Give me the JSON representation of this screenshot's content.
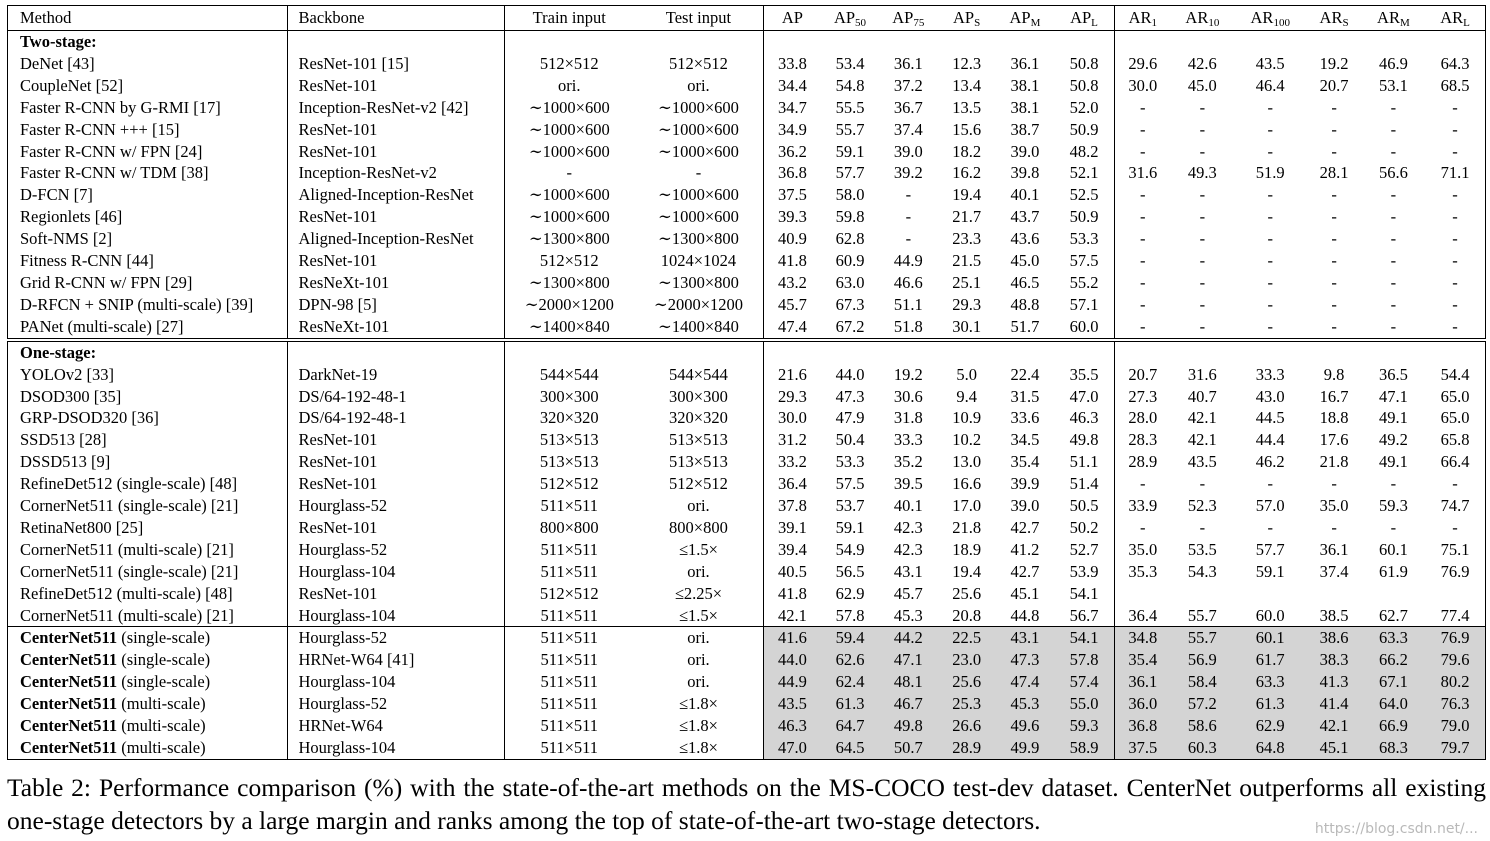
{
  "headers": {
    "method": "Method",
    "backbone": "Backbone",
    "train": "Train input",
    "test": "Test input",
    "metrics": [
      {
        "base": "AP",
        "sub": ""
      },
      {
        "base": "AP",
        "sub": "50"
      },
      {
        "base": "AP",
        "sub": "75"
      },
      {
        "base": "AP",
        "sub": "S"
      },
      {
        "base": "AP",
        "sub": "M"
      },
      {
        "base": "AP",
        "sub": "L"
      },
      {
        "base": "AR",
        "sub": "1"
      },
      {
        "base": "AR",
        "sub": "10"
      },
      {
        "base": "AR",
        "sub": "100"
      },
      {
        "base": "AR",
        "sub": "S"
      },
      {
        "base": "AR",
        "sub": "M"
      },
      {
        "base": "AR",
        "sub": "L"
      }
    ]
  },
  "sections": [
    {
      "label": "Two-stage:",
      "rows": [
        {
          "method": "DeNet [43]",
          "backbone": "ResNet-101 [15]",
          "train": "512×512",
          "test": "512×512",
          "values": [
            "33.8",
            "53.4",
            "36.1",
            "12.3",
            "36.1",
            "50.8",
            "29.6",
            "42.6",
            "43.5",
            "19.2",
            "46.9",
            "64.3"
          ]
        },
        {
          "method": "CoupleNet [52]",
          "backbone": "ResNet-101",
          "train": "ori.",
          "test": "ori.",
          "values": [
            "34.4",
            "54.8",
            "37.2",
            "13.4",
            "38.1",
            "50.8",
            "30.0",
            "45.0",
            "46.4",
            "20.7",
            "53.1",
            "68.5"
          ]
        },
        {
          "method": "Faster R-CNN by G-RMI [17]",
          "backbone": "Inception-ResNet-v2 [42]",
          "train": "∼1000×600",
          "test": "∼1000×600",
          "values": [
            "34.7",
            "55.5",
            "36.7",
            "13.5",
            "38.1",
            "52.0",
            "-",
            "-",
            "-",
            "-",
            "-",
            "-"
          ]
        },
        {
          "method": "Faster R-CNN +++ [15]",
          "backbone": "ResNet-101",
          "train": "∼1000×600",
          "test": "∼1000×600",
          "values": [
            "34.9",
            "55.7",
            "37.4",
            "15.6",
            "38.7",
            "50.9",
            "-",
            "-",
            "-",
            "-",
            "-",
            "-"
          ]
        },
        {
          "method": "Faster R-CNN w/ FPN [24]",
          "backbone": "ResNet-101",
          "train": "∼1000×600",
          "test": "∼1000×600",
          "values": [
            "36.2",
            "59.1",
            "39.0",
            "18.2",
            "39.0",
            "48.2",
            "-",
            "-",
            "-",
            "-",
            "-",
            "-"
          ]
        },
        {
          "method": "Faster R-CNN w/ TDM [38]",
          "backbone": "Inception-ResNet-v2",
          "train": "-",
          "test": "-",
          "values": [
            "36.8",
            "57.7",
            "39.2",
            "16.2",
            "39.8",
            "52.1",
            "31.6",
            "49.3",
            "51.9",
            "28.1",
            "56.6",
            "71.1"
          ],
          "bold": [
            6,
            7,
            8,
            9,
            10,
            11
          ]
        },
        {
          "method": "D-FCN [7]",
          "backbone": "Aligned-Inception-ResNet",
          "train": "∼1000×600",
          "test": "∼1000×600",
          "values": [
            "37.5",
            "58.0",
            "-",
            "19.4",
            "40.1",
            "52.5",
            "-",
            "-",
            "-",
            "-",
            "-",
            "-"
          ]
        },
        {
          "method": "Regionlets [46]",
          "backbone": "ResNet-101",
          "train": "∼1000×600",
          "test": "∼1000×600",
          "values": [
            "39.3",
            "59.8",
            "-",
            "21.7",
            "43.7",
            "50.9",
            "-",
            "-",
            "-",
            "-",
            "-",
            "-"
          ]
        },
        {
          "method": "Soft-NMS [2]",
          "backbone": "Aligned-Inception-ResNet",
          "train": "∼1300×800",
          "test": "∼1300×800",
          "values": [
            "40.9",
            "62.8",
            "-",
            "23.3",
            "43.6",
            "53.3",
            "-",
            "-",
            "-",
            "-",
            "-",
            "-"
          ]
        },
        {
          "method": "Fitness R-CNN [44]",
          "backbone": "ResNet-101",
          "train": "512×512",
          "test": "1024×1024",
          "values": [
            "41.8",
            "60.9",
            "44.9",
            "21.5",
            "45.0",
            "57.5",
            "-",
            "-",
            "-",
            "-",
            "-",
            "-"
          ]
        },
        {
          "method": "Grid R-CNN w/ FPN [29]",
          "backbone": "ResNeXt-101",
          "train": "∼1300×800",
          "test": "∼1300×800",
          "values": [
            "43.2",
            "63.0",
            "46.6",
            "25.1",
            "46.5",
            "55.2",
            "-",
            "-",
            "-",
            "-",
            "-",
            "-"
          ]
        },
        {
          "method": "D-RFCN + SNIP (multi-scale) [39]",
          "backbone": "DPN-98 [5]",
          "train": "∼2000×1200",
          "test": "∼2000×1200",
          "values": [
            "45.7",
            "67.3",
            "51.1",
            "29.3",
            "48.8",
            "57.1",
            "-",
            "-",
            "-",
            "-",
            "-",
            "-"
          ],
          "bold": [
            1
          ]
        },
        {
          "method": "PANet (multi-scale) [27]",
          "backbone": "ResNeXt-101",
          "train": "∼1400×840",
          "test": "∼1400×840",
          "values": [
            "47.4",
            "67.2",
            "51.8",
            "30.1",
            "51.7",
            "60.0",
            "-",
            "-",
            "-",
            "-",
            "-",
            "-"
          ],
          "bold": [
            0,
            2,
            3,
            4,
            5
          ]
        }
      ]
    },
    {
      "label": "One-stage:",
      "rows": [
        {
          "method": "YOLOv2 [33]",
          "backbone": "DarkNet-19",
          "train": "544×544",
          "test": "544×544",
          "values": [
            "21.6",
            "44.0",
            "19.2",
            "5.0",
            "22.4",
            "35.5",
            "20.7",
            "31.6",
            "33.3",
            "9.8",
            "36.5",
            "54.4"
          ]
        },
        {
          "method": "DSOD300 [35]",
          "backbone": "DS/64-192-48-1",
          "train": "300×300",
          "test": "300×300",
          "values": [
            "29.3",
            "47.3",
            "30.6",
            "9.4",
            "31.5",
            "47.0",
            "27.3",
            "40.7",
            "43.0",
            "16.7",
            "47.1",
            "65.0"
          ]
        },
        {
          "method": "GRP-DSOD320 [36]",
          "backbone": "DS/64-192-48-1",
          "train": "320×320",
          "test": "320×320",
          "values": [
            "30.0",
            "47.9",
            "31.8",
            "10.9",
            "33.6",
            "46.3",
            "28.0",
            "42.1",
            "44.5",
            "18.8",
            "49.1",
            "65.0"
          ]
        },
        {
          "method": "SSD513 [28]",
          "backbone": "ResNet-101",
          "train": "513×513",
          "test": "513×513",
          "values": [
            "31.2",
            "50.4",
            "33.3",
            "10.2",
            "34.5",
            "49.8",
            "28.3",
            "42.1",
            "44.4",
            "17.6",
            "49.2",
            "65.8"
          ]
        },
        {
          "method": "DSSD513 [9]",
          "backbone": "ResNet-101",
          "train": "513×513",
          "test": "513×513",
          "values": [
            "33.2",
            "53.3",
            "35.2",
            "13.0",
            "35.4",
            "51.1",
            "28.9",
            "43.5",
            "46.2",
            "21.8",
            "49.1",
            "66.4"
          ]
        },
        {
          "method": "RefineDet512 (single-scale) [48]",
          "backbone": "ResNet-101",
          "train": "512×512",
          "test": "512×512",
          "values": [
            "36.4",
            "57.5",
            "39.5",
            "16.6",
            "39.9",
            "51.4",
            "-",
            "-",
            "-",
            "-",
            "-",
            "-"
          ]
        },
        {
          "method": "CornerNet511 (single-scale) [21]",
          "backbone": "Hourglass-52",
          "train": "511×511",
          "test": "ori.",
          "values": [
            "37.8",
            "53.7",
            "40.1",
            "17.0",
            "39.0",
            "50.5",
            "33.9",
            "52.3",
            "57.0",
            "35.0",
            "59.3",
            "74.7"
          ]
        },
        {
          "method": "RetinaNet800 [25]",
          "backbone": "ResNet-101",
          "train": "800×800",
          "test": "800×800",
          "values": [
            "39.1",
            "59.1",
            "42.3",
            "21.8",
            "42.7",
            "50.2",
            "-",
            "-",
            "-",
            "-",
            "-",
            "-"
          ]
        },
        {
          "method": "CornerNet511 (multi-scale) [21]",
          "backbone": "Hourglass-52",
          "train": "511×511",
          "test": "≤1.5×",
          "values": [
            "39.4",
            "54.9",
            "42.3",
            "18.9",
            "41.2",
            "52.7",
            "35.0",
            "53.5",
            "57.7",
            "36.1",
            "60.1",
            "75.1"
          ]
        },
        {
          "method": "CornerNet511 (single-scale) [21]",
          "backbone": "Hourglass-104",
          "train": "511×511",
          "test": "ori.",
          "values": [
            "40.5",
            "56.5",
            "43.1",
            "19.4",
            "42.7",
            "53.9",
            "35.3",
            "54.3",
            "59.1",
            "37.4",
            "61.9",
            "76.9"
          ]
        },
        {
          "method": "RefineDet512 (multi-scale) [48]",
          "backbone": "ResNet-101",
          "train": "512×512",
          "test": "≤2.25×",
          "values": [
            "41.8",
            "62.9",
            "45.7",
            "25.6",
            "45.1",
            "54.1",
            "",
            "",
            "",
            "",
            "",
            ""
          ]
        },
        {
          "method": "CornerNet511 (multi-scale) [21]",
          "backbone": "Hourglass-104",
          "train": "511×511",
          "test": "≤1.5×",
          "values": [
            "42.1",
            "57.8",
            "45.3",
            "20.8",
            "44.8",
            "56.7",
            "36.4",
            "55.7",
            "60.0",
            "38.5",
            "62.7",
            "77.4"
          ]
        }
      ]
    },
    {
      "label": "",
      "shaded": true,
      "rows": [
        {
          "method_bold": "CenterNet511",
          "method": " (single-scale)",
          "backbone": "Hourglass-52",
          "train": "511×511",
          "test": "ori.",
          "values": [
            "41.6",
            "59.4",
            "44.2",
            "22.5",
            "43.1",
            "54.1",
            "34.8",
            "55.7",
            "60.1",
            "38.6",
            "63.3",
            "76.9"
          ]
        },
        {
          "method_bold": "CenterNet511",
          "method": " (single-scale)",
          "backbone": "HRNet-W64 [41]",
          "train": "511×511",
          "test": "ori.",
          "values": [
            "44.0",
            "62.6",
            "47.1",
            "23.0",
            "47.3",
            "57.8",
            "35.4",
            "56.9",
            "61.7",
            "38.3",
            "66.2",
            "79.6"
          ]
        },
        {
          "method_bold": "CenterNet511",
          "method": " (single-scale)",
          "backbone": "Hourglass-104",
          "train": "511×511",
          "test": "ori.",
          "values": [
            "44.9",
            "62.4",
            "48.1",
            "25.6",
            "47.4",
            "57.4",
            "36.1",
            "58.4",
            "63.3",
            "41.3",
            "67.1",
            "80.2"
          ]
        },
        {
          "method_bold": "CenterNet511",
          "method": " (multi-scale)",
          "backbone": "Hourglass-52",
          "train": "511×511",
          "test": "≤1.8×",
          "values": [
            "43.5",
            "61.3",
            "46.7",
            "25.3",
            "45.3",
            "55.0",
            "36.0",
            "57.2",
            "61.3",
            "41.4",
            "64.0",
            "76.3"
          ]
        },
        {
          "method_bold": "CenterNet511",
          "method": " (multi-scale)",
          "backbone": "HRNet-W64",
          "train": "511×511",
          "test": "≤1.8×",
          "values": [
            "46.3",
            "64.7",
            "49.8",
            "26.6",
            "49.6",
            "59.3",
            "36.8",
            "58.6",
            "62.9",
            "42.1",
            "66.9",
            "79.0"
          ]
        },
        {
          "method_bold": "CenterNet511",
          "method": " (multi-scale)",
          "backbone": "Hourglass-104",
          "train": "511×511",
          "test": "≤1.8×",
          "values": [
            "47.0",
            "64.5",
            "50.7",
            "28.9",
            "49.9",
            "58.9",
            "37.5",
            "60.3",
            "64.8",
            "45.1",
            "68.3",
            "79.7"
          ],
          "bold": [
            0,
            1,
            2,
            3,
            4,
            5,
            6,
            7,
            8,
            9,
            10,
            11
          ]
        }
      ]
    }
  ],
  "caption": "Table 2: Performance comparison (%) with the state-of-the-art methods on the MS-COCO test-dev dataset. CenterNet outperforms all existing one-stage detectors by a large margin and ranks among the top of state-of-the-art two-stage detectors.",
  "watermark": "https://blog.csdn.net/..."
}
